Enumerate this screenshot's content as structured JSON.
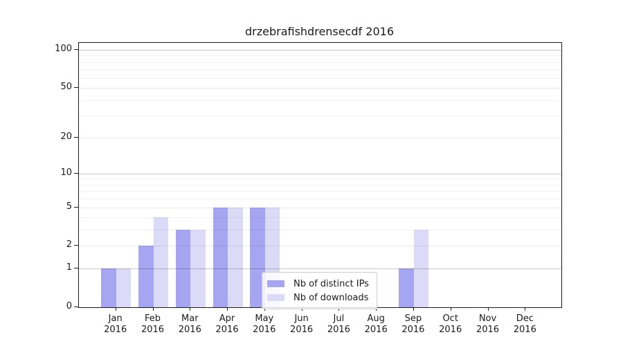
{
  "chart_data": {
    "type": "bar",
    "title": "drzebrafishdrensecdf 2016",
    "categories": [
      "Jan 2016",
      "Feb 2016",
      "Mar 2016",
      "Apr 2016",
      "May 2016",
      "Jun 2016",
      "Jul 2016",
      "Aug 2016",
      "Sep 2016",
      "Oct 2016",
      "Nov 2016",
      "Dec 2016"
    ],
    "series": [
      {
        "name": "Nb of distinct IPs",
        "color": "#a5a5f2",
        "values": [
          1,
          2,
          3,
          5,
          5,
          0,
          0,
          0,
          1,
          0,
          0,
          0
        ]
      },
      {
        "name": "Nb of downloads",
        "color": "#dbdbf8",
        "values": [
          1,
          4,
          3,
          5,
          5,
          0,
          0,
          0,
          3,
          0,
          0,
          0
        ]
      }
    ],
    "xlabel": "",
    "ylabel": "",
    "yscale": "log1p",
    "ylim": [
      0,
      113
    ],
    "yticks": [
      0,
      1,
      2,
      5,
      10,
      20,
      50,
      100
    ],
    "minor_grid_values": [
      3,
      4,
      6,
      7,
      8,
      9,
      30,
      40,
      60,
      70,
      80,
      90
    ],
    "emphasized_grid_values": [
      1,
      10,
      100
    ],
    "grid": true,
    "legend_position": "lower center"
  },
  "colors": {
    "distinct_ips": "#a5a5f2",
    "downloads": "#dbdbf8",
    "grid_major": "rgba(0,0,0,0.22)",
    "grid_mid": "rgba(0,0,0,0.09)",
    "grid_minor": "rgba(0,0,0,0.055)",
    "spine": "#1a1a1a",
    "background": "#ffffff"
  }
}
